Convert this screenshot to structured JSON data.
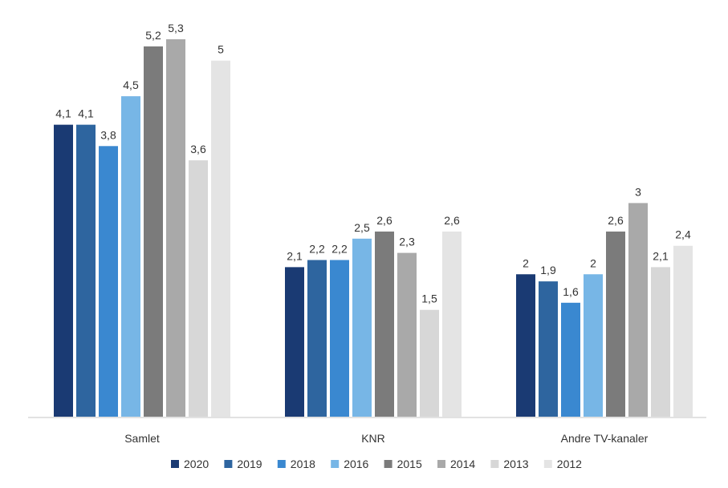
{
  "chart_data": {
    "type": "bar",
    "categories": [
      "Samlet",
      "KNR",
      "Andre TV-kanaler"
    ],
    "series": [
      {
        "name": "2020",
        "color": "#1a3a73",
        "values": [
          4.1,
          2.1,
          2.0
        ],
        "labels": [
          "4,1",
          "2,1",
          "2"
        ]
      },
      {
        "name": "2019",
        "color": "#2e659f",
        "values": [
          4.1,
          2.2,
          1.9
        ],
        "labels": [
          "4,1",
          "2,2",
          "1,9"
        ]
      },
      {
        "name": "2018",
        "color": "#3a88d0",
        "values": [
          3.8,
          2.2,
          1.6
        ],
        "labels": [
          "3,8",
          "2,2",
          "1,6"
        ]
      },
      {
        "name": "2016",
        "color": "#77b6e6",
        "values": [
          4.5,
          2.5,
          2.0
        ],
        "labels": [
          "4,5",
          "2,5",
          "2"
        ]
      },
      {
        "name": "2015",
        "color": "#7b7b7b",
        "values": [
          5.2,
          2.6,
          2.6
        ],
        "labels": [
          "5,2",
          "2,6",
          "2,6"
        ]
      },
      {
        "name": "2014",
        "color": "#a9a9a9",
        "values": [
          5.3,
          2.3,
          3.0
        ],
        "labels": [
          "5,3",
          "2,3",
          "3"
        ]
      },
      {
        "name": "2013",
        "color": "#d7d7d7",
        "values": [
          3.6,
          1.5,
          2.1
        ],
        "labels": [
          "3,6",
          "1,5",
          "2,1"
        ]
      },
      {
        "name": "2012",
        "color": "#e4e4e4",
        "values": [
          5.0,
          2.6,
          2.4
        ],
        "labels": [
          "5",
          "2,6",
          "2,4"
        ]
      }
    ],
    "title": "",
    "xlabel": "",
    "ylabel": "",
    "ylim": [
      0,
      5.3
    ],
    "grid": false,
    "legend_position": "bottom"
  }
}
